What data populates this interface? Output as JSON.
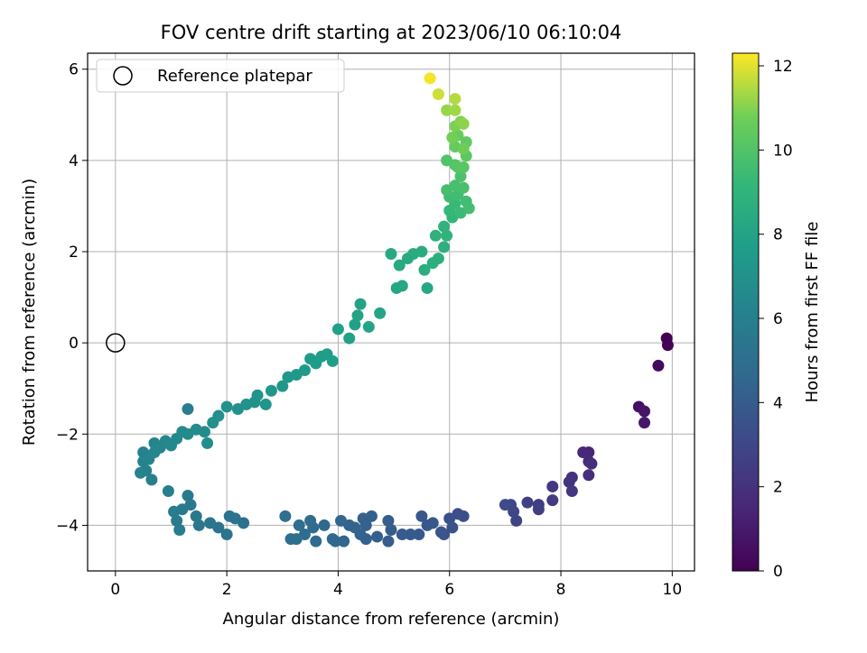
{
  "chart_data": {
    "type": "scatter",
    "title": "FOV centre drift starting at 2023/06/10 06:10:04",
    "xlabel": "Angular distance from reference (arcmin)",
    "ylabel": "Rotation from reference (arcmin)",
    "xlim": [
      -0.5,
      10.4
    ],
    "ylim": [
      -5,
      6.35
    ],
    "xticks": [
      0,
      2,
      4,
      6,
      8,
      10
    ],
    "yticks": [
      -4,
      -2,
      0,
      2,
      4,
      6
    ],
    "grid": true,
    "legend": {
      "placement": "upper-left",
      "entries": [
        "Reference platepar"
      ]
    },
    "reference_point": {
      "x": 0,
      "y": 0,
      "label": "Reference platepar"
    },
    "colorbar": {
      "label": "Hours from first FF file",
      "min": 0,
      "max": 12.3,
      "ticks": [
        0,
        2,
        4,
        6,
        8,
        10,
        12
      ],
      "colormap": "viridis"
    },
    "series": [
      {
        "points": [
          [
            9.9,
            0.1,
            0.0
          ],
          [
            9.92,
            -0.05,
            0.05
          ],
          [
            9.75,
            -0.5,
            0.3
          ],
          [
            9.4,
            -1.4,
            0.6
          ],
          [
            9.5,
            -1.5,
            0.8
          ],
          [
            9.5,
            -1.75,
            0.9
          ],
          [
            8.5,
            -2.4,
            1.5
          ],
          [
            8.4,
            -2.4,
            1.6
          ],
          [
            8.5,
            -2.6,
            1.7
          ],
          [
            8.55,
            -2.65,
            1.8
          ],
          [
            8.5,
            -2.9,
            1.9
          ],
          [
            8.2,
            -2.95,
            2.0
          ],
          [
            8.15,
            -3.05,
            2.1
          ],
          [
            8.2,
            -3.25,
            2.2
          ],
          [
            7.85,
            -3.15,
            2.3
          ],
          [
            7.85,
            -3.45,
            2.4
          ],
          [
            7.6,
            -3.55,
            2.5
          ],
          [
            7.6,
            -3.65,
            2.6
          ],
          [
            7.4,
            -3.5,
            2.7
          ],
          [
            7.2,
            -3.9,
            2.8
          ],
          [
            7.15,
            -3.7,
            2.9
          ],
          [
            7.1,
            -3.55,
            3.0
          ],
          [
            7.0,
            -3.55,
            3.1
          ],
          [
            6.25,
            -3.8,
            3.3
          ],
          [
            6.15,
            -3.75,
            3.35
          ],
          [
            6.0,
            -3.85,
            3.4
          ],
          [
            6.05,
            -4.05,
            3.5
          ],
          [
            5.9,
            -4.2,
            3.6
          ],
          [
            5.85,
            -4.15,
            3.65
          ],
          [
            5.7,
            -3.95,
            3.7
          ],
          [
            5.6,
            -4.0,
            3.75
          ],
          [
            5.5,
            -3.8,
            3.8
          ],
          [
            5.45,
            -4.2,
            3.85
          ],
          [
            5.3,
            -4.2,
            3.9
          ],
          [
            5.15,
            -4.2,
            3.95
          ],
          [
            4.95,
            -4.1,
            4.0
          ],
          [
            4.9,
            -4.35,
            4.05
          ],
          [
            4.9,
            -3.9,
            4.1
          ],
          [
            4.7,
            -4.25,
            4.15
          ],
          [
            4.6,
            -3.8,
            4.2
          ],
          [
            4.5,
            -4.3,
            4.25
          ],
          [
            4.5,
            -4.0,
            4.3
          ],
          [
            4.45,
            -3.85,
            4.3
          ],
          [
            4.4,
            -4.2,
            4.35
          ],
          [
            4.3,
            -4.05,
            4.4
          ],
          [
            4.2,
            -4.0,
            4.45
          ],
          [
            4.1,
            -4.35,
            4.5
          ],
          [
            4.05,
            -3.9,
            4.55
          ],
          [
            3.95,
            -4.35,
            4.6
          ],
          [
            3.9,
            -4.3,
            4.65
          ],
          [
            3.75,
            -4.0,
            4.7
          ],
          [
            3.6,
            -4.35,
            4.75
          ],
          [
            3.55,
            -4.05,
            4.8
          ],
          [
            3.5,
            -3.9,
            4.85
          ],
          [
            3.4,
            -4.2,
            4.9
          ],
          [
            3.3,
            -4.0,
            4.95
          ],
          [
            3.25,
            -4.3,
            5.0
          ],
          [
            3.15,
            -4.3,
            5.05
          ],
          [
            3.05,
            -3.8,
            5.1
          ],
          [
            2.3,
            -3.95,
            5.15
          ],
          [
            2.15,
            -3.85,
            5.2
          ],
          [
            2.05,
            -3.8,
            5.25
          ],
          [
            2.0,
            -4.2,
            5.3
          ],
          [
            1.85,
            -4.05,
            5.35
          ],
          [
            1.7,
            -3.95,
            5.4
          ],
          [
            1.5,
            -4.0,
            5.45
          ],
          [
            1.45,
            -3.8,
            5.5
          ],
          [
            1.35,
            -3.55,
            5.55
          ],
          [
            1.3,
            -3.35,
            5.6
          ],
          [
            1.2,
            -3.65,
            5.65
          ],
          [
            1.1,
            -3.9,
            5.7
          ],
          [
            1.15,
            -4.1,
            5.75
          ],
          [
            1.05,
            -3.7,
            5.8
          ],
          [
            0.95,
            -3.25,
            5.85
          ],
          [
            1.3,
            -1.45,
            5.9
          ],
          [
            0.65,
            -3.0,
            6.0
          ],
          [
            0.55,
            -2.8,
            6.05
          ],
          [
            0.5,
            -2.6,
            6.1
          ],
          [
            0.45,
            -2.85,
            6.15
          ],
          [
            0.5,
            -2.4,
            6.2
          ],
          [
            0.6,
            -2.55,
            6.25
          ],
          [
            0.7,
            -2.2,
            6.3
          ],
          [
            0.7,
            -2.4,
            6.35
          ],
          [
            0.8,
            -2.3,
            6.4
          ],
          [
            0.9,
            -2.15,
            6.45
          ],
          [
            1.0,
            -2.25,
            6.5
          ],
          [
            1.1,
            -2.1,
            6.55
          ],
          [
            1.2,
            -1.95,
            6.6
          ],
          [
            1.3,
            -2.0,
            6.65
          ],
          [
            1.45,
            -1.9,
            6.7
          ],
          [
            1.6,
            -1.95,
            6.75
          ],
          [
            1.65,
            -2.2,
            6.8
          ],
          [
            1.75,
            -1.75,
            6.85
          ],
          [
            1.85,
            -1.6,
            6.9
          ],
          [
            2.0,
            -1.4,
            6.95
          ],
          [
            2.2,
            -1.45,
            7.0
          ],
          [
            2.35,
            -1.35,
            7.05
          ],
          [
            2.5,
            -1.3,
            7.1
          ],
          [
            2.55,
            -1.15,
            7.15
          ],
          [
            2.7,
            -1.35,
            7.2
          ],
          [
            2.8,
            -1.05,
            7.25
          ],
          [
            3.0,
            -0.95,
            7.3
          ],
          [
            3.1,
            -0.75,
            7.35
          ],
          [
            3.25,
            -0.7,
            7.4
          ],
          [
            3.4,
            -0.6,
            7.5
          ],
          [
            3.5,
            -0.35,
            7.55
          ],
          [
            3.6,
            -0.45,
            7.6
          ],
          [
            3.7,
            -0.3,
            7.65
          ],
          [
            3.8,
            -0.25,
            7.7
          ],
          [
            3.9,
            -0.4,
            7.75
          ],
          [
            4.0,
            0.3,
            7.8
          ],
          [
            4.2,
            0.1,
            7.85
          ],
          [
            4.3,
            0.4,
            7.9
          ],
          [
            4.35,
            0.6,
            7.95
          ],
          [
            4.4,
            0.85,
            8.0
          ],
          [
            4.55,
            0.35,
            8.05
          ],
          [
            4.75,
            0.65,
            8.1
          ],
          [
            5.05,
            1.2,
            8.15
          ],
          [
            5.15,
            1.25,
            8.2
          ],
          [
            5.6,
            1.2,
            8.25
          ],
          [
            4.95,
            1.95,
            8.3
          ],
          [
            5.1,
            1.7,
            8.35
          ],
          [
            5.25,
            1.85,
            8.4
          ],
          [
            5.35,
            1.95,
            8.45
          ],
          [
            5.5,
            2.0,
            8.55
          ],
          [
            5.55,
            1.6,
            8.6
          ],
          [
            5.7,
            1.75,
            8.65
          ],
          [
            5.8,
            1.85,
            8.7
          ],
          [
            5.9,
            2.1,
            8.75
          ],
          [
            5.75,
            2.35,
            8.8
          ],
          [
            5.9,
            2.55,
            8.9
          ],
          [
            5.95,
            2.35,
            9.0
          ],
          [
            6.05,
            2.75,
            9.1
          ],
          [
            6.0,
            2.9,
            9.2
          ],
          [
            6.1,
            3.05,
            9.3
          ],
          [
            6.2,
            2.85,
            9.4
          ],
          [
            6.0,
            3.2,
            9.5
          ],
          [
            6.15,
            3.25,
            9.55
          ],
          [
            6.3,
            3.1,
            9.6
          ],
          [
            6.35,
            2.95,
            9.65
          ],
          [
            5.95,
            3.35,
            9.7
          ],
          [
            6.1,
            3.45,
            9.75
          ],
          [
            6.25,
            3.4,
            9.8
          ],
          [
            6.2,
            3.65,
            9.85
          ],
          [
            5.95,
            4.0,
            10.0
          ],
          [
            6.1,
            3.9,
            10.1
          ],
          [
            6.15,
            3.85,
            10.15
          ],
          [
            6.25,
            3.85,
            10.2
          ],
          [
            6.3,
            4.1,
            10.3
          ],
          [
            6.3,
            4.4,
            10.4
          ],
          [
            6.1,
            4.3,
            10.5
          ],
          [
            6.15,
            4.55,
            10.6
          ],
          [
            6.25,
            4.25,
            10.7
          ],
          [
            6.05,
            4.5,
            10.8
          ],
          [
            6.1,
            4.75,
            10.9
          ],
          [
            6.2,
            4.85,
            11.0
          ],
          [
            6.25,
            4.8,
            11.1
          ],
          [
            5.95,
            5.1,
            11.2
          ],
          [
            6.1,
            5.1,
            11.3
          ],
          [
            6.1,
            5.35,
            11.5
          ],
          [
            5.8,
            5.45,
            11.8
          ],
          [
            5.65,
            5.8,
            12.2
          ]
        ]
      }
    ]
  }
}
